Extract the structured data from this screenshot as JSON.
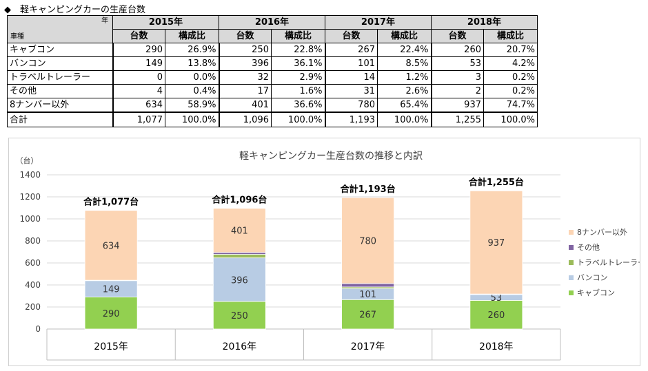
{
  "heading": "◆　軽キャンピングカーの生産台数",
  "table": {
    "corner_top": "年",
    "corner_bottom": "車種",
    "years": [
      "2015年",
      "2016年",
      "2017年",
      "2018年"
    ],
    "sub_count": "台数",
    "sub_ratio": "構成比",
    "rows": [
      {
        "name": "キャブコン",
        "cells": [
          "290",
          "26.9%",
          "250",
          "22.8%",
          "267",
          "22.4%",
          "260",
          "20.7%"
        ]
      },
      {
        "name": "バンコン",
        "cells": [
          "149",
          "13.8%",
          "396",
          "36.1%",
          "101",
          "8.5%",
          "53",
          "4.2%"
        ]
      },
      {
        "name": "トラベルトレーラー",
        "cells": [
          "0",
          "0.0%",
          "32",
          "2.9%",
          "14",
          "1.2%",
          "3",
          "0.2%"
        ]
      },
      {
        "name": "その他",
        "cells": [
          "4",
          "0.4%",
          "17",
          "1.6%",
          "31",
          "2.6%",
          "2",
          "0.2%"
        ]
      },
      {
        "name": "8ナンバー以外",
        "cells": [
          "634",
          "58.9%",
          "401",
          "36.6%",
          "780",
          "65.4%",
          "937",
          "74.7%"
        ]
      }
    ],
    "total": {
      "name": "合計",
      "cells": [
        "1,077",
        "100.0%",
        "1,096",
        "100.0%",
        "1,193",
        "100.0%",
        "1,255",
        "100.0%"
      ]
    }
  },
  "chart_data": {
    "type": "bar",
    "stacked": true,
    "title": "軽キャンピングカー生産台数の推移と内訳",
    "ylabel": "（台）",
    "xlabel": "",
    "ylim": [
      0,
      1400
    ],
    "yticks": [
      0,
      200,
      400,
      600,
      800,
      1000,
      1200,
      1400
    ],
    "grid": true,
    "legend_position": "right",
    "categories": [
      "2015年",
      "2016年",
      "2017年",
      "2018年"
    ],
    "series": [
      {
        "name": "キャブコン",
        "color": "#92d050",
        "values": [
          290,
          250,
          267,
          260
        ],
        "labels": [
          "290",
          "250",
          "267",
          "260"
        ]
      },
      {
        "name": "バンコン",
        "color": "#b8cce4",
        "values": [
          149,
          396,
          101,
          53
        ],
        "labels": [
          "149",
          "396",
          "101",
          "53"
        ]
      },
      {
        "name": "トラベルトレーラー",
        "color": "#9bbb59",
        "values": [
          0,
          32,
          14,
          3
        ],
        "labels": [
          "",
          "",
          "",
          ""
        ]
      },
      {
        "name": "その他",
        "color": "#8064a2",
        "values": [
          4,
          17,
          31,
          2
        ],
        "labels": [
          "",
          "",
          "",
          ""
        ]
      },
      {
        "name": "8ナンバー以外",
        "color": "#fcd5b4",
        "values": [
          634,
          401,
          780,
          937
        ],
        "labels": [
          "634",
          "401",
          "780",
          "937"
        ]
      }
    ],
    "totals": [
      "合計1,077台",
      "合計1,096台",
      "合計1,193台",
      "合計1,255台"
    ]
  }
}
